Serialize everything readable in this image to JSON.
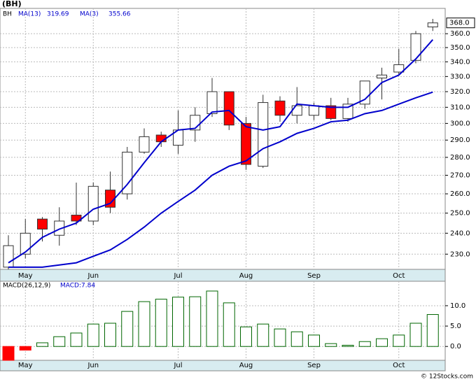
{
  "title": "(BH)",
  "watermark": "© 12Stocks.com",
  "chart_data": [
    {
      "type": "candlestick",
      "symbol": "BH",
      "log_scale": true,
      "grid": true,
      "categories": [
        null,
        "May",
        null,
        null,
        null,
        "Jun",
        null,
        null,
        null,
        null,
        "Jul",
        null,
        null,
        null,
        "Aug",
        null,
        null,
        null,
        "Sep",
        null,
        null,
        null,
        null,
        "Oct",
        null,
        null
      ],
      "open": [
        224,
        230,
        247,
        239,
        249,
        246,
        262,
        260,
        283,
        293,
        287,
        296,
        306,
        320,
        300,
        275,
        314,
        305,
        305,
        311,
        303,
        312,
        329,
        333,
        341,
        365
      ],
      "high": [
        239,
        247,
        248,
        253,
        266,
        266,
        272,
        286,
        297,
        295,
        308,
        310,
        329,
        320,
        304,
        318,
        317,
        323,
        313,
        316,
        316,
        327,
        336,
        349,
        362,
        371
      ],
      "low": [
        223,
        228,
        236,
        234,
        244,
        244,
        250,
        257,
        282,
        286,
        282,
        289,
        304,
        296,
        273,
        274,
        301,
        300,
        302,
        302,
        301,
        309,
        315,
        331,
        339,
        362
      ],
      "close": [
        234,
        240,
        242,
        246,
        246,
        264,
        253,
        283,
        292,
        289,
        296,
        305,
        320,
        299,
        276,
        313,
        305,
        311,
        311,
        303,
        312,
        327,
        331,
        338,
        360,
        368
      ],
      "up_color": "#ffffff",
      "down_color": "#ff0000",
      "price_label": "368.0",
      "series": [
        {
          "name": "MA(13)",
          "color": "#0000cc",
          "last_label": "319.69",
          "values": [
            224,
            224,
            224,
            225,
            226,
            229,
            232,
            237,
            243,
            250,
            256,
            262,
            270,
            275,
            278,
            285,
            289,
            294,
            297,
            301,
            302,
            306,
            308,
            312,
            316,
            319.69
          ]
        },
        {
          "name": "MA(3)",
          "color": "#0000cc",
          "last_label": "355.66",
          "values": [
            226,
            231,
            238,
            242,
            245,
            252,
            255,
            265,
            277,
            289,
            296,
            297,
            307,
            308,
            298,
            296,
            298,
            312,
            311,
            310,
            310,
            315,
            326,
            331,
            342,
            355.66
          ]
        }
      ],
      "ylim": [
        223,
        379
      ],
      "yticks": [
        {
          "value": 230,
          "label": "230.0"
        },
        {
          "value": 240,
          "label": "240.0"
        },
        {
          "value": 250,
          "label": "250.0"
        },
        {
          "value": 260,
          "label": "260.0"
        },
        {
          "value": 270,
          "label": "270.0"
        },
        {
          "value": 280,
          "label": "280.0"
        },
        {
          "value": 290,
          "label": "290.0"
        },
        {
          "value": 300,
          "label": "300.0"
        },
        {
          "value": 310,
          "label": "310.0"
        },
        {
          "value": 320,
          "label": "320.0"
        },
        {
          "value": 330,
          "label": "330.0"
        },
        {
          "value": 340,
          "label": "340.0"
        },
        {
          "value": 350,
          "label": "350.0"
        },
        {
          "value": 360,
          "label": "360.0"
        }
      ]
    },
    {
      "type": "bar",
      "title": "MACD(26,12,9)",
      "value_label": "MACD:7.84",
      "grid": true,
      "values": [
        -3.4,
        -0.9,
        0.9,
        2.4,
        3.3,
        5.5,
        5.7,
        8.6,
        11.0,
        11.6,
        12.1,
        12.2,
        13.6,
        10.7,
        4.8,
        5.5,
        4.3,
        3.6,
        2.8,
        0.7,
        0.3,
        1.2,
        1.9,
        2.8,
        5.7,
        7.84
      ],
      "up_color": "#ffffff",
      "down_color": "#ff0000",
      "edge_color": "#006600",
      "ylim": [
        -3.4,
        16
      ],
      "yticks": [
        {
          "value": 0,
          "label": "0.0"
        },
        {
          "value": 5,
          "label": "5.0"
        },
        {
          "value": 10,
          "label": "10.0"
        }
      ]
    }
  ]
}
